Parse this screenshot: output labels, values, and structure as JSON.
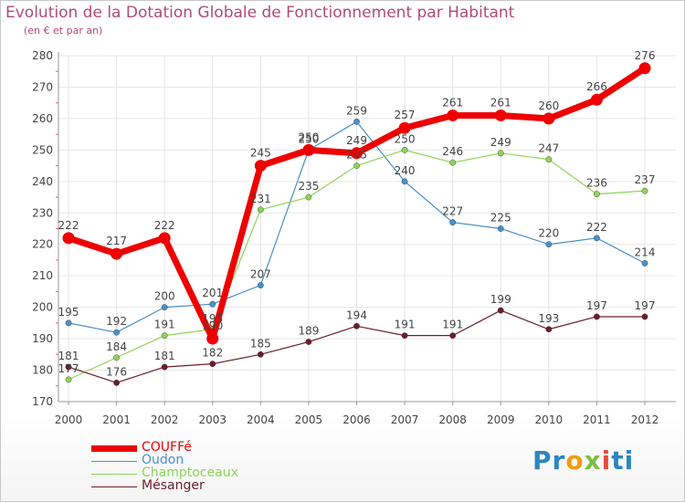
{
  "title": "Evolution de la Dotation Globale de Fonctionnement par Habitant",
  "subtitle": "(en € et par an)",
  "logo": {
    "p1": "Pr",
    "p2": "o",
    "p3": "x",
    "p4": "i",
    "p5": "ti"
  },
  "chart_data": {
    "type": "line",
    "title": "Evolution de la Dotation Globale de Fonctionnement par Habitant",
    "ylabel": "(en € et par an)",
    "xlabel": "",
    "ylim": [
      170,
      280
    ],
    "yticks": [
      170,
      180,
      190,
      200,
      210,
      220,
      230,
      240,
      250,
      260,
      270,
      280
    ],
    "categories": [
      "2000",
      "2001",
      "2002",
      "2003",
      "2004",
      "2005",
      "2006",
      "2007",
      "2008",
      "2009",
      "2010",
      "2011",
      "2012"
    ],
    "series": [
      {
        "name": "COUFFé",
        "color": "#ee0000",
        "values": [
          222,
          217,
          222,
          190,
          245,
          250,
          249,
          257,
          261,
          261,
          260,
          266,
          276
        ]
      },
      {
        "name": "Oudon",
        "color": "#4a90c8",
        "values": [
          195,
          192,
          200,
          201,
          207,
          250,
          259,
          240,
          227,
          225,
          220,
          222,
          214
        ]
      },
      {
        "name": "Champtoceaux",
        "color": "#8ed35a",
        "values": [
          177,
          184,
          191,
          193,
          231,
          235,
          245,
          250,
          246,
          249,
          247,
          236,
          237
        ]
      },
      {
        "name": "Mésanger",
        "color": "#6b1e2a",
        "values": [
          181,
          176,
          181,
          182,
          185,
          189,
          194,
          191,
          191,
          199,
          193,
          197,
          197
        ]
      }
    ]
  }
}
